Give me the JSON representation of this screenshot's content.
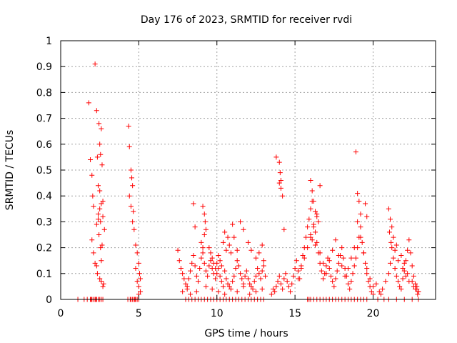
{
  "chart_data": {
    "type": "scatter",
    "title": "Day 176 of 2023, SRMTID for receiver rvdi",
    "xlabel": "GPS time / hours",
    "ylabel": "SRMTID / TECUs",
    "xlim": [
      0,
      24
    ],
    "ylim": [
      0,
      1
    ],
    "xticks": [
      0,
      5,
      10,
      15,
      20
    ],
    "xtick_labels": [
      "0",
      "5",
      "10",
      "15",
      "20"
    ],
    "yticks": [
      0,
      0.1,
      0.2,
      0.3,
      0.4,
      0.5,
      0.6,
      0.7,
      0.8,
      0.9,
      1
    ],
    "ytick_labels": [
      "0",
      "0.1",
      "0.2",
      "0.3",
      "0.4",
      "0.5",
      "0.6",
      "0.7",
      "0.8",
      "0.9",
      "1"
    ],
    "grid": true,
    "marker": "plus",
    "color": "#ff0000",
    "series": [
      {
        "name": "SRMTID",
        "x": [
          1.1,
          1.5,
          1.7,
          1.8,
          1.9,
          2.0,
          2.05,
          2.1,
          2.2,
          2.3,
          2.35,
          2.4,
          2.45,
          2.5,
          2.55,
          2.6,
          2.65,
          2.7,
          2.8,
          1.9,
          1.95,
          2.0,
          2.1,
          2.2,
          2.25,
          2.3,
          2.4,
          2.5,
          2.6,
          2.7,
          2.4,
          2.45,
          2.55,
          2.6,
          2.3,
          2.35,
          2.5,
          2.6,
          2.7,
          2.5,
          2.55,
          2.0,
          2.1,
          2.2,
          2.3,
          2.4,
          2.5,
          2.6,
          2.7,
          2.65,
          2.75,
          4.3,
          4.35,
          4.4,
          4.5,
          4.55,
          4.6,
          4.65,
          4.7,
          4.8,
          4.9,
          5.0,
          5.05,
          5.1,
          4.45,
          4.5,
          4.6,
          4.7,
          4.75,
          4.8,
          4.9,
          5.0,
          4.4,
          4.5,
          4.6,
          4.8,
          5.0,
          5.1,
          4.9,
          5.0,
          7.5,
          7.6,
          7.7,
          7.8,
          7.9,
          8.0,
          8.1,
          8.2,
          8.3,
          8.4,
          8.5,
          8.6,
          8.7,
          8.8,
          8.9,
          9.0,
          9.1,
          9.2,
          9.3,
          9.4,
          9.5,
          9.6,
          9.7,
          9.8,
          9.9,
          10.0,
          10.1,
          10.2,
          10.3,
          10.4,
          10.5,
          10.6,
          10.7,
          10.8,
          10.9,
          11.0,
          11.1,
          11.2,
          11.3,
          11.4,
          11.5,
          11.6,
          11.7,
          11.8,
          11.9,
          12.0,
          12.1,
          12.2,
          12.3,
          12.4,
          12.5,
          12.6,
          12.7,
          12.8,
          12.9,
          13.0,
          13.1,
          8.5,
          8.6,
          9.1,
          9.2,
          9.25,
          9.3,
          9.0,
          9.1,
          9.2,
          9.5,
          9.6,
          9.7,
          9.8,
          9.9,
          10.0,
          10.1,
          10.2,
          10.3,
          10.4,
          10.5,
          10.6,
          10.7,
          10.8,
          10.9,
          11.0,
          11.1,
          11.3,
          11.5,
          11.7,
          12.0,
          12.2,
          12.5,
          12.7,
          12.9,
          13.0,
          8.0,
          8.2,
          8.4,
          8.6,
          8.8,
          9.0,
          9.2,
          9.4,
          9.6,
          9.8,
          10.0,
          10.2,
          10.4,
          10.6,
          10.8,
          11.0,
          11.2,
          11.4,
          11.6,
          11.8,
          12.0,
          12.2,
          12.4,
          12.6,
          12.8,
          13.0,
          7.8,
          8.1,
          8.3,
          8.7,
          9.3,
          9.7,
          10.1,
          10.5,
          10.9,
          11.3,
          11.7,
          12.1,
          12.5,
          12.9,
          13.5,
          13.6,
          13.7,
          13.8,
          13.9,
          14.0,
          14.1,
          14.2,
          14.3,
          14.4,
          14.5,
          14.6,
          14.7,
          14.8,
          14.9,
          15.0,
          15.1,
          15.2,
          15.3,
          15.4,
          15.5,
          15.6,
          15.7,
          15.8,
          15.9,
          16.0,
          16.1,
          16.2,
          16.3,
          16.4,
          16.5,
          16.6,
          16.7,
          16.8,
          16.9,
          17.0,
          17.1,
          17.2,
          17.3,
          17.4,
          17.5,
          17.6,
          17.7,
          17.8,
          17.9,
          18.0,
          18.1,
          18.2,
          18.3,
          18.4,
          18.5,
          18.6,
          18.7,
          18.8,
          18.9,
          19.0,
          19.1,
          19.2,
          19.3,
          19.4,
          19.5,
          19.6,
          19.7,
          19.8,
          19.9,
          20.0,
          13.8,
          14.0,
          14.05,
          14.1,
          14.0,
          14.1,
          14.2,
          14.3,
          16.0,
          16.1,
          16.2,
          16.3,
          16.4,
          16.5,
          16.6,
          16.0,
          16.1,
          16.3,
          15.8,
          15.9,
          16.0,
          16.2,
          16.4,
          16.6,
          16.8,
          17.0,
          17.2,
          17.4,
          17.6,
          17.8,
          18.0,
          18.2,
          18.4,
          18.6,
          18.8,
          19.0,
          19.2,
          19.4,
          19.6,
          18.9,
          19.0,
          19.1,
          19.2,
          19.5,
          19.6,
          15.2,
          15.4,
          15.6,
          15.8,
          16.0,
          16.2,
          16.4,
          16.6,
          16.8,
          17.0,
          17.2,
          17.4,
          17.6,
          17.8,
          18.0,
          18.2,
          18.4,
          18.6,
          18.8,
          19.0,
          19.2,
          19.4,
          19.6,
          19.8,
          20.0,
          20.2,
          20.4,
          20.5,
          20.6,
          20.8,
          21.0,
          21.1,
          21.2,
          21.3,
          21.4,
          21.5,
          21.6,
          21.7,
          21.8,
          21.9,
          22.0,
          22.1,
          22.2,
          22.3,
          22.4,
          22.5,
          22.6,
          22.7,
          22.8,
          22.9,
          21.0,
          21.1,
          21.2,
          21.3,
          21.5,
          21.8,
          22.0,
          22.2,
          22.5,
          22.8,
          22.9,
          21.05,
          21.15,
          21.4,
          21.6,
          21.9,
          22.1,
          22.3,
          22.6,
          22.7,
          22.85,
          20.3,
          20.7,
          21.0,
          21.5,
          22.0,
          22.5,
          22.9
        ],
        "y": [
          0,
          0,
          0,
          0.76,
          0.54,
          0.48,
          0.4,
          0.36,
          0.91,
          0.73,
          0.55,
          0.44,
          0.68,
          0.6,
          0.56,
          0.66,
          0.52,
          0.38,
          0.27,
          0,
          0,
          0,
          0,
          0,
          0,
          0,
          0,
          0,
          0,
          0,
          0.31,
          0.25,
          0.2,
          0.15,
          0.13,
          0.1,
          0.08,
          0.07,
          0.05,
          0.35,
          0.3,
          0.23,
          0.18,
          0.14,
          0.29,
          0.33,
          0.42,
          0.37,
          0.32,
          0.21,
          0.06,
          0,
          0.67,
          0.59,
          0.5,
          0.47,
          0.44,
          0.34,
          0.27,
          0.21,
          0.18,
          0.14,
          0.1,
          0.08,
          0,
          0,
          0,
          0,
          0,
          0,
          0,
          0,
          0.4,
          0.36,
          0.3,
          0.12,
          0.05,
          0.03,
          0.07,
          0.02,
          0.19,
          0.15,
          0.12,
          0.1,
          0.08,
          0.06,
          0.05,
          0.08,
          0.11,
          0.14,
          0.17,
          0.13,
          0.09,
          0.07,
          0.12,
          0.16,
          0.18,
          0.14,
          0.11,
          0.09,
          0.13,
          0.15,
          0.12,
          0.1,
          0.08,
          0.14,
          0.12,
          0.09,
          0.07,
          0.05,
          0.11,
          0.08,
          0.06,
          0.05,
          0.04,
          0.07,
          0.09,
          0.12,
          0.15,
          0.13,
          0.1,
          0.08,
          0.06,
          0.09,
          0.11,
          0.08,
          0.06,
          0.05,
          0.04,
          0.07,
          0.09,
          0.12,
          0.1,
          0.08,
          0.11,
          0.13,
          0.09,
          0.37,
          0.28,
          0.36,
          0.33,
          0.3,
          0.27,
          0.22,
          0.2,
          0.25,
          0.2,
          0.18,
          0.16,
          0.14,
          0.12,
          0.1,
          0.17,
          0.15,
          0.13,
          0.22,
          0.26,
          0.19,
          0.24,
          0.21,
          0.18,
          0.29,
          0.24,
          0.19,
          0.3,
          0.27,
          0.22,
          0.19,
          0.16,
          0.18,
          0.21,
          0.15,
          0,
          0,
          0,
          0,
          0,
          0,
          0,
          0,
          0,
          0,
          0,
          0,
          0,
          0,
          0,
          0,
          0,
          0,
          0,
          0,
          0,
          0,
          0,
          0,
          0,
          0,
          0.03,
          0.04,
          0.02,
          0.03,
          0.05,
          0.04,
          0.03,
          0.02,
          0.04,
          0.03,
          0.05,
          0.02,
          0.03,
          0.04,
          0.02,
          0.04,
          0.03,
          0.05,
          0.07,
          0.09,
          0.06,
          0.04,
          0.08,
          0.1,
          0.07,
          0.05,
          0.03,
          0.06,
          0.09,
          0.12,
          0.15,
          0.11,
          0.08,
          0.13,
          0.17,
          0.2,
          0.24,
          0.28,
          0.31,
          0.35,
          0.38,
          0.29,
          0.26,
          0.22,
          0.18,
          0.14,
          0.11,
          0.08,
          0.1,
          0.13,
          0.16,
          0.12,
          0.09,
          0.07,
          0.05,
          0.08,
          0.11,
          0.14,
          0.17,
          0.2,
          0.16,
          0.12,
          0.09,
          0.06,
          0.04,
          0.07,
          0.1,
          0.13,
          0.16,
          0.2,
          0.24,
          0.28,
          0.22,
          0.18,
          0.14,
          0.1,
          0.07,
          0.05,
          0.03,
          0.02,
          0.55,
          0.53,
          0.49,
          0.46,
          0.45,
          0.43,
          0.4,
          0.27,
          0.46,
          0.42,
          0.38,
          0.34,
          0.33,
          0.3,
          0.44,
          0.25,
          0.23,
          0.21,
          0,
          0,
          0,
          0,
          0,
          0,
          0,
          0,
          0,
          0,
          0,
          0,
          0,
          0,
          0,
          0,
          0,
          0,
          0,
          0,
          0,
          0.57,
          0.41,
          0.38,
          0.33,
          0.37,
          0.32,
          0.08,
          0.12,
          0.16,
          0.2,
          0.24,
          0.28,
          0.32,
          0.18,
          0.14,
          0.1,
          0.15,
          0.19,
          0.23,
          0.17,
          0.13,
          0.09,
          0.12,
          0.16,
          0.2,
          0.3,
          0.24,
          0.18,
          0.12,
          0.08,
          0.05,
          0.06,
          0.03,
          0.02,
          0.04,
          0.07,
          0.1,
          0.14,
          0.2,
          0.16,
          0.12,
          0.09,
          0.07,
          0.05,
          0.04,
          0.08,
          0.11,
          0.15,
          0.19,
          0.23,
          0.18,
          0.13,
          0.09,
          0.06,
          0.04,
          0.03,
          0.35,
          0.31,
          0.28,
          0.24,
          0.21,
          0.17,
          0.14,
          0.1,
          0.07,
          0.05,
          0.03,
          0.26,
          0.22,
          0.19,
          0.15,
          0.12,
          0.09,
          0.07,
          0.05,
          0.04,
          0.02,
          0,
          0,
          0,
          0,
          0,
          0,
          0
        ]
      }
    ]
  }
}
